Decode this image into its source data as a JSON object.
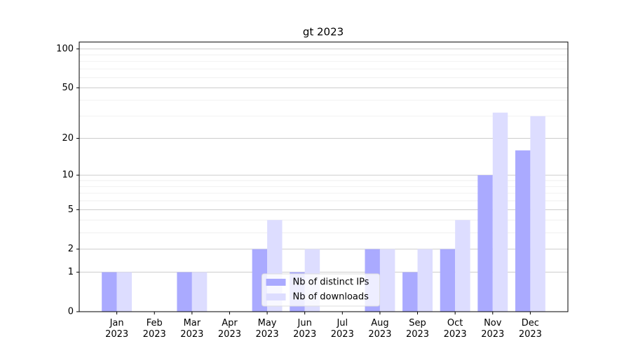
{
  "chart_data": {
    "type": "bar",
    "title": "gt 2023",
    "categories": [
      "Jan 2023",
      "Feb 2023",
      "Mar 2023",
      "Apr 2023",
      "May 2023",
      "Jun 2023",
      "Jul 2023",
      "Aug 2023",
      "Sep 2023",
      "Oct 2023",
      "Nov 2023",
      "Dec 2023"
    ],
    "series": [
      {
        "name": "Nb of distinct IPs",
        "color": "#aaaaff",
        "values": [
          1,
          0,
          1,
          0,
          2,
          1,
          0,
          2,
          1,
          2,
          10,
          16
        ]
      },
      {
        "name": "Nb of downloads",
        "color": "#ddddff",
        "values": [
          1,
          0,
          1,
          0,
          4,
          2,
          0,
          2,
          2,
          4,
          32,
          30
        ]
      }
    ],
    "yscale": "log1p",
    "ylim": [
      0,
      113
    ],
    "yticks": [
      0,
      1,
      2,
      5,
      10,
      20,
      50,
      100
    ],
    "yminor": [
      3,
      4,
      6,
      7,
      8,
      9,
      30,
      40,
      60,
      70,
      80,
      90
    ],
    "grid": true,
    "legend": "lower center"
  }
}
